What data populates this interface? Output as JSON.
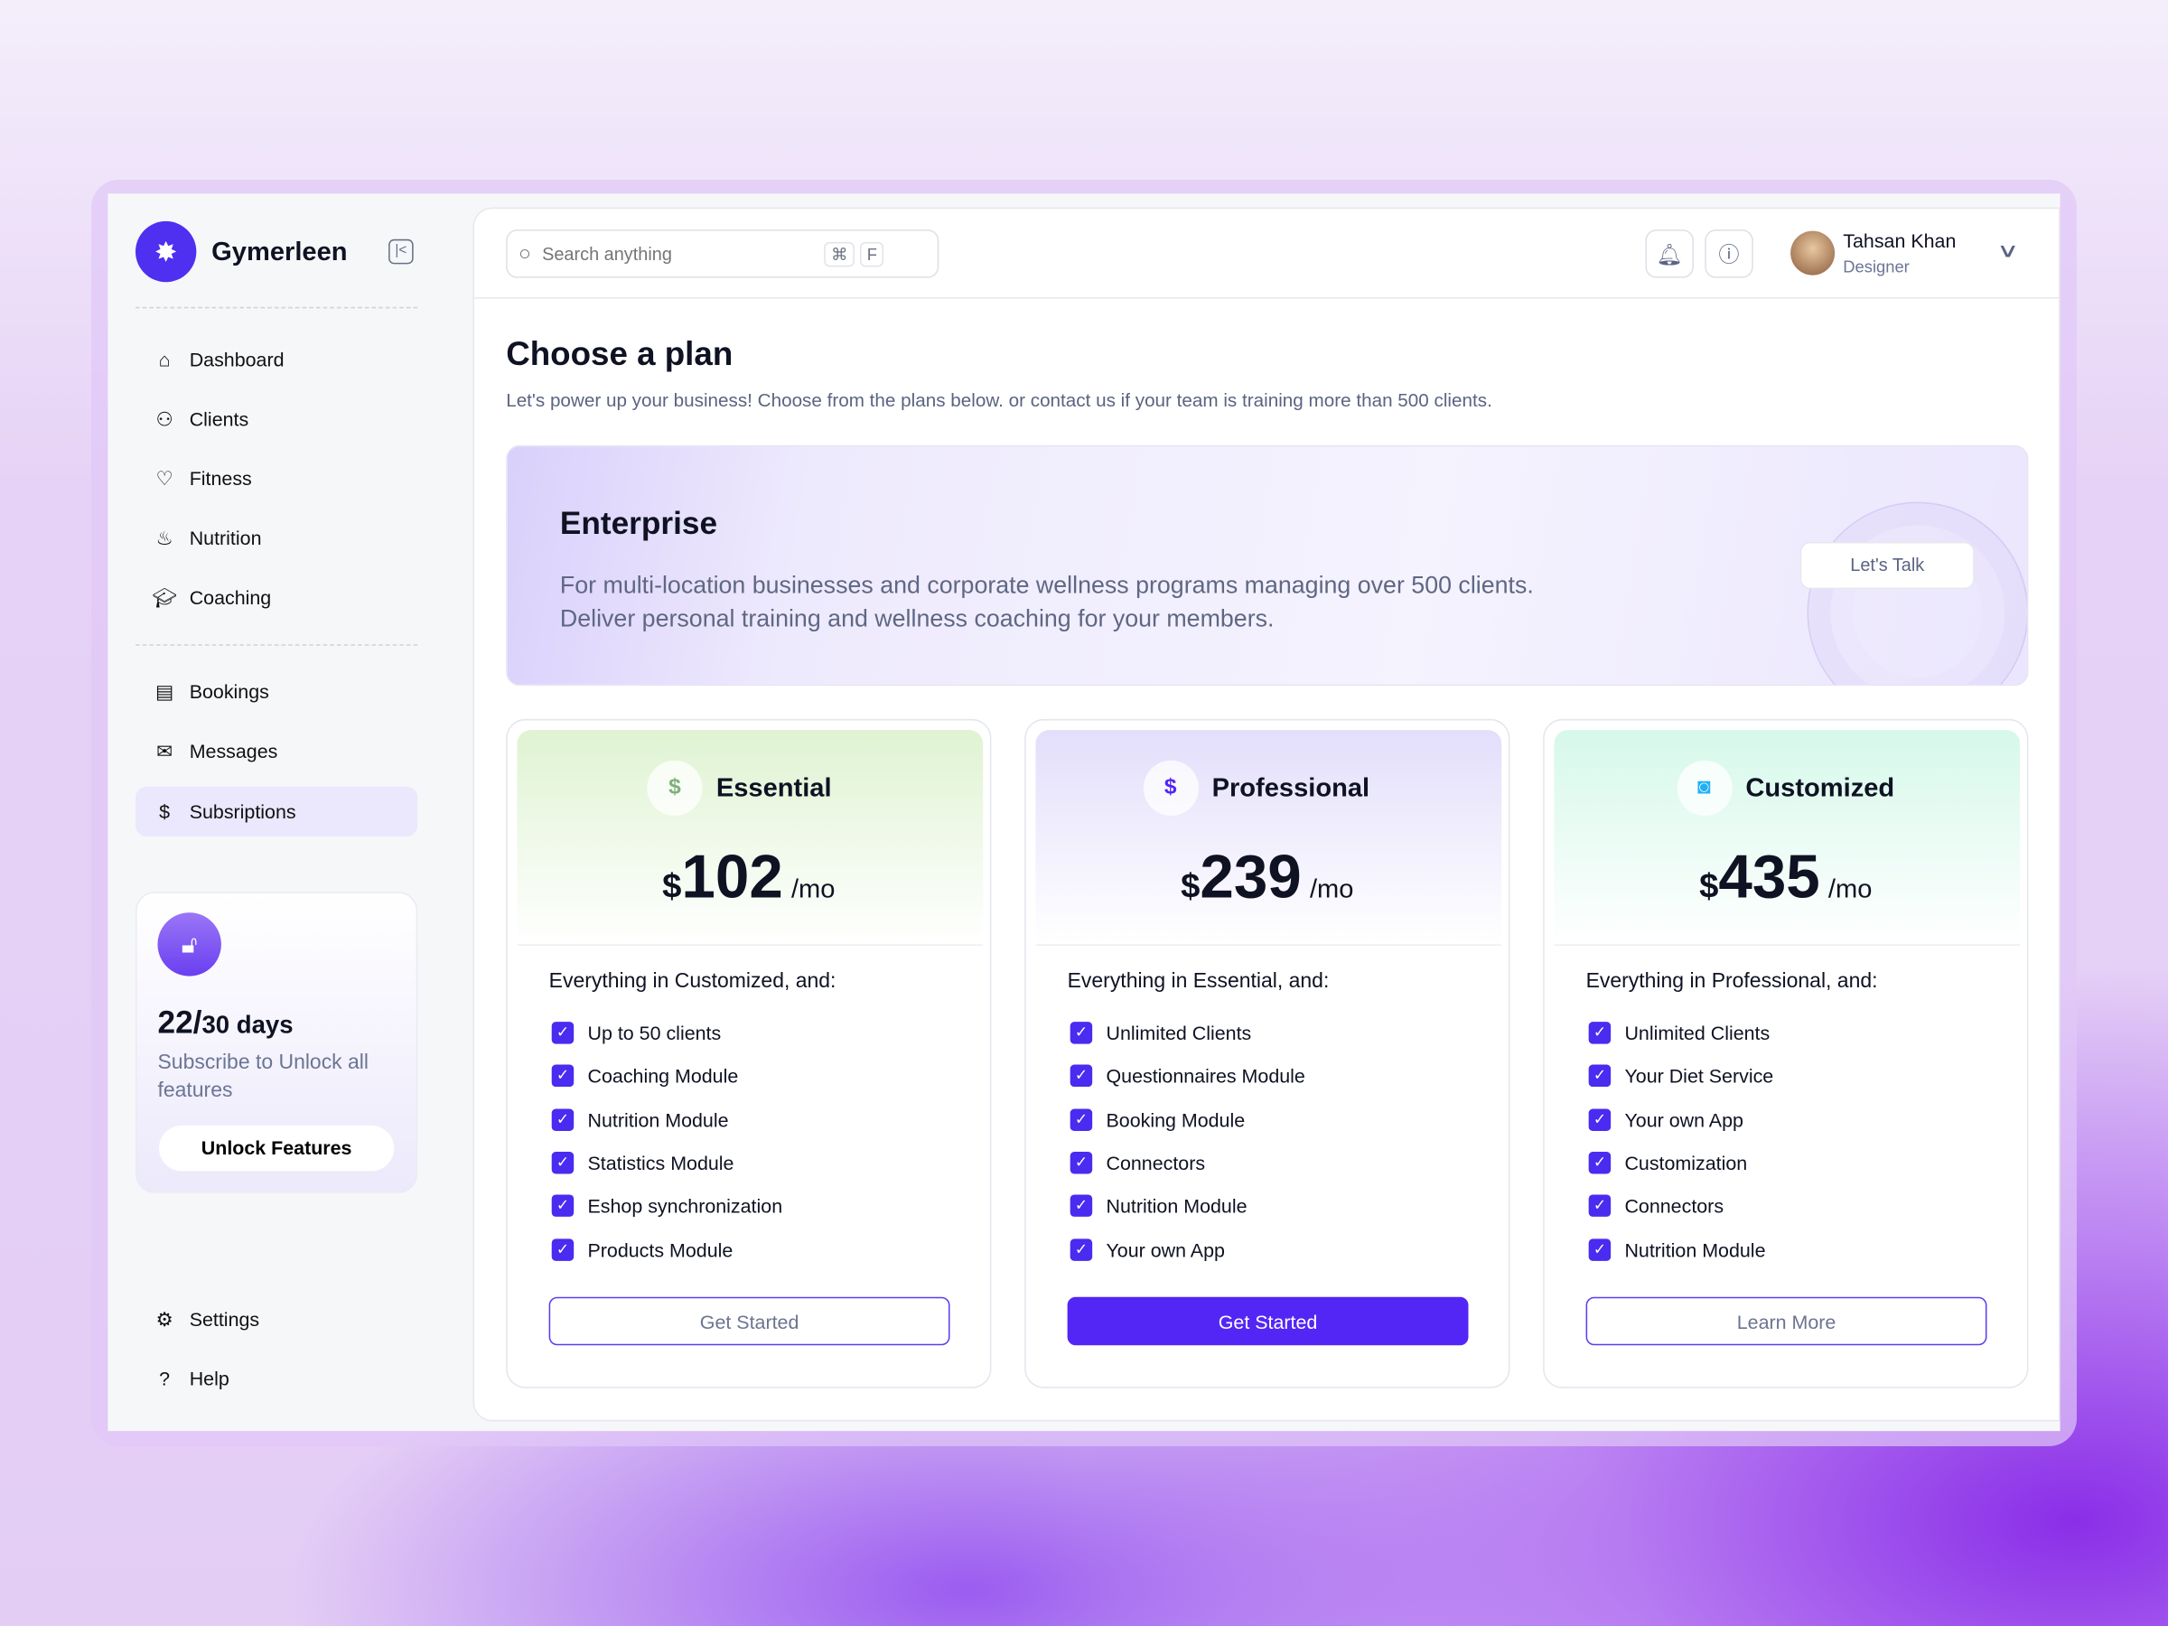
{
  "sidebar": {
    "brand": "Gymerleen",
    "nav_main": [
      {
        "label": "Dashboard",
        "icon": "home-icon"
      },
      {
        "label": "Clients",
        "icon": "users-icon"
      },
      {
        "label": "Fitness",
        "icon": "heart-pulse-icon"
      },
      {
        "label": "Nutrition",
        "icon": "food-icon"
      },
      {
        "label": "Coaching",
        "icon": "graduation-cap-icon"
      }
    ],
    "nav_secondary": [
      {
        "label": "Bookings",
        "icon": "calendar-icon"
      },
      {
        "label": "Messages",
        "icon": "inbox-icon"
      },
      {
        "label": "Subsriptions",
        "icon": "subscription-icon",
        "active": true
      }
    ],
    "promo": {
      "days_used": "22/",
      "days_total": "30 days",
      "text": "Subscribe to Unlock all features",
      "button": "Unlock Features"
    },
    "nav_bottom": [
      {
        "label": "Settings",
        "icon": "gear-icon"
      },
      {
        "label": "Help",
        "icon": "help-icon"
      }
    ]
  },
  "header": {
    "search_placeholder": "Search anything",
    "shortcut_key1": "⌘",
    "shortcut_key2": "F",
    "user_name": "Tahsan Khan",
    "user_role": "Designer"
  },
  "page": {
    "title": "Choose a plan",
    "subtitle": "Let's power up your business! Choose from the plans below. or contact us if your team is training more than 500 clients."
  },
  "enterprise": {
    "title": "Enterprise",
    "line1": "For multi-location businesses and corporate wellness programs managing over 500 clients.",
    "line2": "Deliver personal training and wellness coaching for your members.",
    "button": "Let's Talk"
  },
  "plans": [
    {
      "name": "Essential",
      "currency": "$",
      "price": "102",
      "period": "/mo",
      "lead": "Everything in Customized, and:",
      "features": [
        "Up to 50 clients",
        "Coaching Module",
        "Nutrition Module",
        "Statistics Module",
        "Eshop synchronization",
        "Products Module"
      ],
      "cta": "Get Started",
      "color": "#dff3d2"
    },
    {
      "name": "Professional",
      "currency": "$",
      "price": "239",
      "period": "/mo",
      "lead": "Everything in Essential, and:",
      "features": [
        "Unlimited Clients",
        "Questionnaires Module",
        "Booking Module",
        "Connectors",
        "Nutrition Module",
        "Your own App"
      ],
      "cta": "Get Started",
      "color": "#e3defb"
    },
    {
      "name": "Customized",
      "currency": "$",
      "price": "435",
      "period": "/mo",
      "lead": "Everything in Professional, and:",
      "features": [
        "Unlimited Clients",
        "Your Diet Service",
        "Your own App",
        "Customization",
        "Connectors",
        "Nutrition Module"
      ],
      "cta": "Learn More",
      "color": "#d6f8ea"
    }
  ],
  "colors": {
    "accent": "#5326f5",
    "active_nav": "#ebe7fc"
  }
}
